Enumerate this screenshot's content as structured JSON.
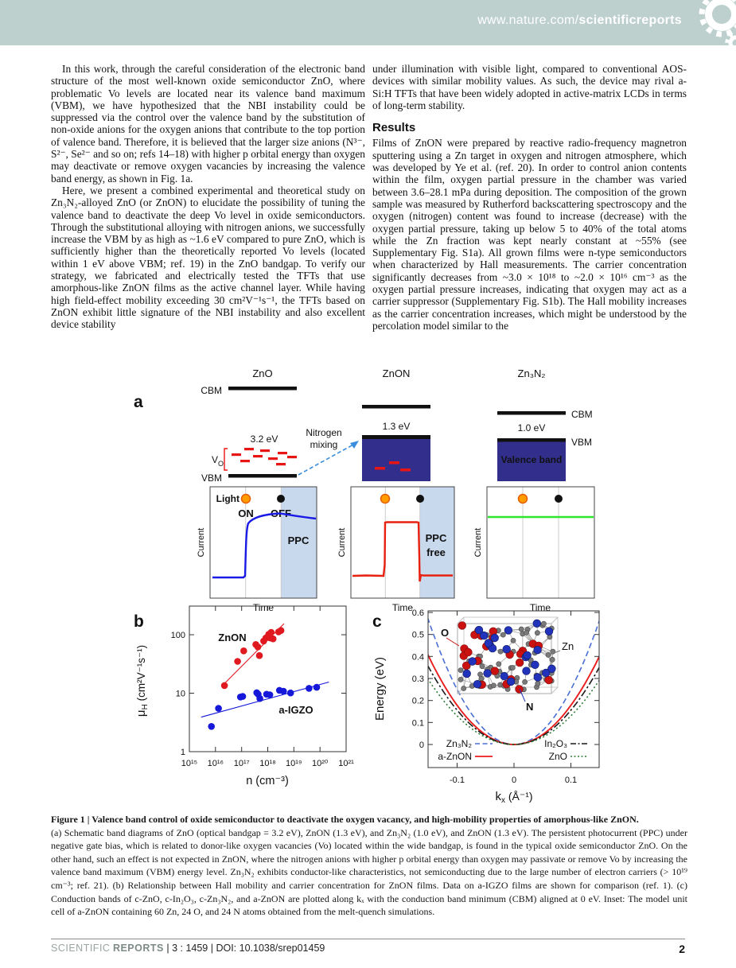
{
  "header": {
    "url_prefix": "www.nature.com/",
    "url_bold": "scientificreports"
  },
  "article": {
    "left_column": {
      "paragraph_1": "In this work, through the careful consideration of the electronic band structure of the most well-known oxide semiconductor ZnO, where problematic Vo levels are located near its valence band maximum (VBM), we have hypothesized that the NBI instability could be suppressed via the control over the valence band by the substitution of non-oxide anions for the oxygen anions that contribute to the top portion of valence band. Therefore, it is believed that the larger size anions (N³⁻, S²⁻, Se²⁻ and so on; refs 14–18) with higher p orbital energy than oxygen may deactivate or remove oxygen vacancies by increasing the valence band energy, as shown in Fig. 1a.",
      "paragraph_2": "Here, we present a combined experimental and theoretical study on Zn₃N₂-alloyed ZnO (or ZnON) to elucidate the possibility of tuning the valence band to deactivate the deep Vo level in oxide semiconductors. Through the substitutional alloying with nitrogen anions, we successfully increase the VBM by as high as ~1.6 eV compared to pure ZnO, which is sufficiently higher than the theoretically reported Vo levels (located within 1 eV above VBM; ref. 19) in the ZnO bandgap. To verify our strategy, we fabricated and electrically tested the TFTs that use amorphous-like ZnON films as the active channel layer. While having high field-effect mobility exceeding 30 cm²V⁻¹s⁻¹, the TFTs based on ZnON exhibit little signature of the NBI instability and also excellent device stability"
    },
    "right_column": {
      "paragraph_1": "under illumination with visible light, compared to conventional AOS-devices with similar mobility values. As such, the device may rival a-Si:H TFTs that have been widely adopted in active-matrix LCDs in terms of long-term stability.",
      "results_heading": "Results",
      "paragraph_2": "Films of ZnON were prepared by reactive radio-frequency magnetron sputtering using a Zn target in oxygen and nitrogen atmosphere, which was developed by Ye et al. (ref. 20). In order to control anion contents within the film, oxygen partial pressure in the chamber was varied between 3.6–28.1 mPa during deposition. The composition of the grown sample was measured by Rutherford backscattering spectroscopy and the oxygen (nitrogen) content was found to increase (decrease) with the oxygen partial pressure, taking up below 5 to 40% of the total atoms while the Zn fraction was kept nearly constant at ~55% (see Supplementary Fig. S1a). All grown films were n-type semiconductors when characterized by Hall measurements. The carrier concentration significantly decreases from ~3.0 × 10¹⁸ to ~2.0 × 10¹⁶ cm⁻³ as the oxygen partial pressure increases, indicating that oxygen may act as a carrier suppressor (Supplementary Fig. S1b). The Hall mobility increases as the carrier concentration increases, which might be understood by the percolation model similar to the"
    }
  },
  "figure": {
    "panel_a": {
      "label": "a",
      "band_diagrams": {
        "zno": {
          "title": "ZnO",
          "cbm": "CBM",
          "vbm": "VBM",
          "gap": "3.2 eV",
          "vo": "V",
          "vo_sub": "O"
        },
        "znon": {
          "title": "ZnON",
          "gap": "1.3 eV"
        },
        "zn3n2": {
          "title": "Zn₃N₂",
          "cbm": "CBM",
          "vbm": "VBM",
          "gap": "1.0 eV",
          "valence_band": "Valence band"
        }
      },
      "nitrogen_mixing_line1": "Nitrogen",
      "nitrogen_mixing_line2": "mixing",
      "arrow_color": "#3b8ede",
      "valence_fill": "#312e8c",
      "vo_color": "#e81515",
      "shade_color": "#c8d9ee",
      "time_plots": [
        {
          "light": "Light",
          "on": "ON",
          "off": "OFF",
          "annotation": "PPC",
          "ylabel": "Current",
          "xlabel": "Time",
          "line_color": "#1a1ae6",
          "annotation_color": "#1a1ae6"
        },
        {
          "annotation_line1": "PPC",
          "annotation_line2": "free",
          "ylabel": "Current",
          "xlabel": "Time",
          "line_color": "#e82010",
          "annotation_color": "#e82010"
        },
        {
          "ylabel": "Current",
          "xlabel": "Time",
          "line_color": "#2ee62e"
        }
      ]
    },
    "panel_b": {
      "label": "b",
      "chart_data": {
        "type": "scatter",
        "x_scale": "log",
        "y_scale": "log",
        "xlim": [
          1000000000000000.0,
          1e+21
        ],
        "ylim": [
          1,
          310
        ],
        "xlabel": "n (cm⁻³)",
        "ylabel_mu": "μ",
        "ylabel_sub": "H",
        "ylabel_units": " (cm²V⁻¹s⁻¹)",
        "xticks": [
          "10¹⁵",
          "10¹⁶",
          "10¹⁷",
          "10¹⁸",
          "10¹⁹",
          "10²⁰",
          "10²¹"
        ],
        "yticks": [
          "1",
          "10",
          "100"
        ],
        "series": [
          {
            "name": "ZnON",
            "color": "#e0181f",
            "points": [
              [
                2.2e+16,
                13.5
              ],
              [
                7e+16,
                35
              ],
              [
                1.2e+17,
                53
              ],
              [
                3.5e+17,
                68
              ],
              [
                4.2e+17,
                62
              ],
              [
                4.8e+17,
                44
              ],
              [
                7e+17,
                78
              ],
              [
                8.5e+17,
                88
              ],
              [
                1e+18,
                92
              ],
              [
                1.1e+18,
                102
              ],
              [
                1.25e+18,
                88
              ],
              [
                1.35e+18,
                110
              ],
              [
                1.6e+18,
                85
              ],
              [
                2.6e+18,
                112
              ],
              [
                3.2e+18,
                118
              ]
            ],
            "fit_line": [
              [
                1.7e+16,
                13
              ],
              [
                4.2e+18,
                155
              ]
            ]
          },
          {
            "name": "a-IGZO",
            "color": "#1518d8",
            "points": [
              [
                7000000000000000.0,
                2.7
              ],
              [
                1.3e+16,
                5.5
              ],
              [
                9e+16,
                8.6
              ],
              [
                1.1e+17,
                8.8
              ],
              [
                3.8e+17,
                10.2
              ],
              [
                4.3e+17,
                9.6
              ],
              [
                5e+17,
                8.1
              ],
              [
                9e+17,
                9.6
              ],
              [
                1.2e+18,
                9.4
              ],
              [
                2.8e+18,
                11.2
              ],
              [
                4e+18,
                10.8
              ],
              [
                7.5e+18,
                10.1
              ],
              [
                3.8e+19,
                12.1
              ],
              [
                7.5e+19,
                12.6
              ]
            ],
            "fit_line": [
              [
                2800000000000000.0,
                3.9
              ],
              [
                2.2e+20,
                15.5
              ]
            ]
          }
        ]
      }
    },
    "panel_c": {
      "label": "c",
      "chart_data": {
        "type": "line",
        "xlabel_k": "k",
        "xlabel_sub": "x",
        "xlabel_units": " (Å⁻¹)",
        "ylabel": "Energy (eV)",
        "xlim": [
          -0.15,
          0.15
        ],
        "ylim": [
          0,
          0.6
        ],
        "xticks": [
          "-0.1",
          "0",
          "0.1"
        ],
        "yticks": [
          "0",
          "0.1",
          "0.2",
          "0.3",
          "0.4",
          "0.5",
          "0.6"
        ],
        "series": [
          {
            "name": "Zn₃N₂",
            "color": "#4a6fd4",
            "style": "dashed",
            "curvature": 25.0
          },
          {
            "name": "a-ZnON",
            "color": "#ea1c1c",
            "style": "solid",
            "curvature": 17.8
          },
          {
            "name": "In₂O₃",
            "color": "#1a1a1a",
            "style": "dashdot",
            "curvature": 15.6
          },
          {
            "name": "ZnO",
            "color": "#2e7d32",
            "style": "dotted",
            "curvature": 13.0
          }
        ],
        "inset": {
          "atom_labels": {
            "o": "O",
            "zn": "Zn",
            "n": "N"
          },
          "atom_colors": {
            "o": "#cc1111",
            "zn": "#7a7a7a",
            "n": "#2233bb"
          },
          "composition": "60 Zn, 24 O, 24 N"
        }
      }
    }
  },
  "caption": {
    "title": "Figure 1 | Valence band control of oxide semiconductor to deactivate the oxygen vacancy, and high-mobility properties of amorphous-like ZnON.",
    "body": "(a) Schematic band diagrams of ZnO (optical bandgap = 3.2 eV), ZnON (1.3 eV), and Zn₃N₂ (1.0 eV), and ZnON (1.3 eV). The persistent photocurrent (PPC) under negative gate bias, which is related to donor-like oxygen vacancies (Vo) located within the wide bandgap, is found in the typical oxide semiconductor ZnO. On the other hand, such an effect is not expected in ZnON, where the nitrogen anions with higher p orbital energy than oxygen may passivate or remove Vo by increasing the valence band maximum (VBM) energy level. Zn₃N₂ exhibits conductor-like characteristics, not semiconducting due to the large number of electron carriers (> 10¹⁹ cm⁻³; ref. 21). (b) Relationship between Hall mobility and carrier concentration for ZnON films. Data on a-IGZO films are shown for comparison (ref. 1). (c) Conduction bands of c-ZnO, c-In₂O₃, c-Zn₃N₂, and a-ZnON are plotted along kₓ with the conduction band minimum (CBM) aligned at 0 eV. Inset: The model unit cell of a-ZnON containing 60 Zn, 24 O, and 24 N atoms obtained from the melt-quench simulations."
  },
  "footer": {
    "journal_light": "SCIENTIFIC",
    "journal_bold": "REPORTS",
    "citation": " | 3 : 1459 | DOI: 10.1038/srep01459",
    "page_number": "2"
  }
}
